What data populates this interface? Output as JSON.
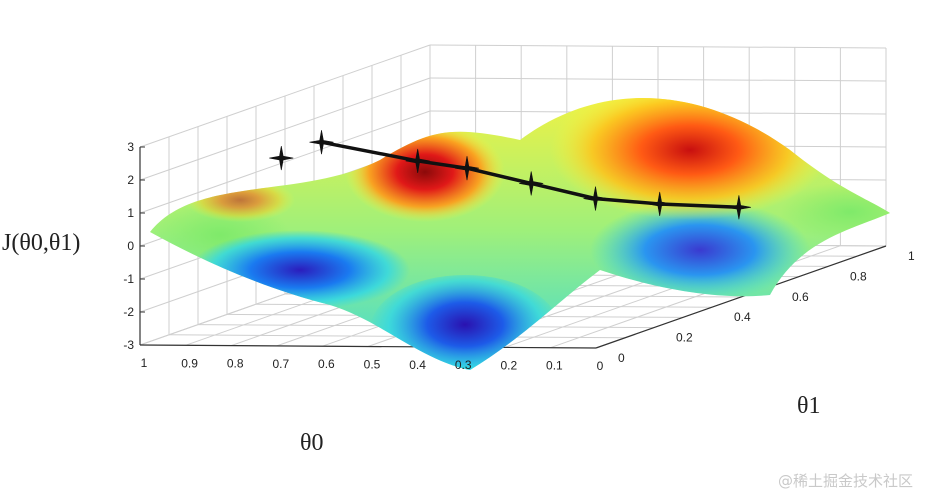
{
  "chart_data": {
    "type": "surface",
    "zlabel": "J(θ0,θ1)",
    "xlabel": "θ0",
    "ylabel": "θ1",
    "z_ticks": [
      "3",
      "2",
      "1",
      "0",
      "-1",
      "-2",
      "-3"
    ],
    "x_ticks": [
      "1",
      "0.9",
      "0.8",
      "0.7",
      "0.6",
      "0.5",
      "0.4",
      "0.3",
      "0.2",
      "0.1",
      "0"
    ],
    "y_ticks": [
      "0",
      "0.2",
      "0.4",
      "0.6",
      "0.8",
      "1"
    ],
    "zlim": [
      -3,
      3
    ],
    "grid": true,
    "colormap": [
      "#2b1dbd",
      "#1a7af0",
      "#2fd6e8",
      "#9ff07a",
      "#fff23a",
      "#ff9a1a",
      "#e01818",
      "#8b0a0a"
    ],
    "descent_path": {
      "marker": "star",
      "color": "#111111",
      "points": [
        {
          "theta0": 0.78,
          "theta1": 0.28,
          "J": 2.3
        },
        {
          "theta0": 0.62,
          "theta1": 0.36,
          "J": 1.5
        },
        {
          "theta0": 0.55,
          "theta1": 0.42,
          "J": 1.1
        },
        {
          "theta0": 0.46,
          "theta1": 0.5,
          "J": 0.4
        },
        {
          "theta0": 0.37,
          "theta1": 0.58,
          "J": -0.3
        },
        {
          "theta0": 0.28,
          "theta1": 0.66,
          "J": -0.7
        },
        {
          "theta0": 0.17,
          "theta1": 0.76,
          "J": -1.1
        }
      ],
      "extra_point": {
        "theta0": 0.83,
        "theta1": 0.22,
        "J": 2.0
      }
    }
  },
  "watermark": "@稀土掘金技术社区"
}
